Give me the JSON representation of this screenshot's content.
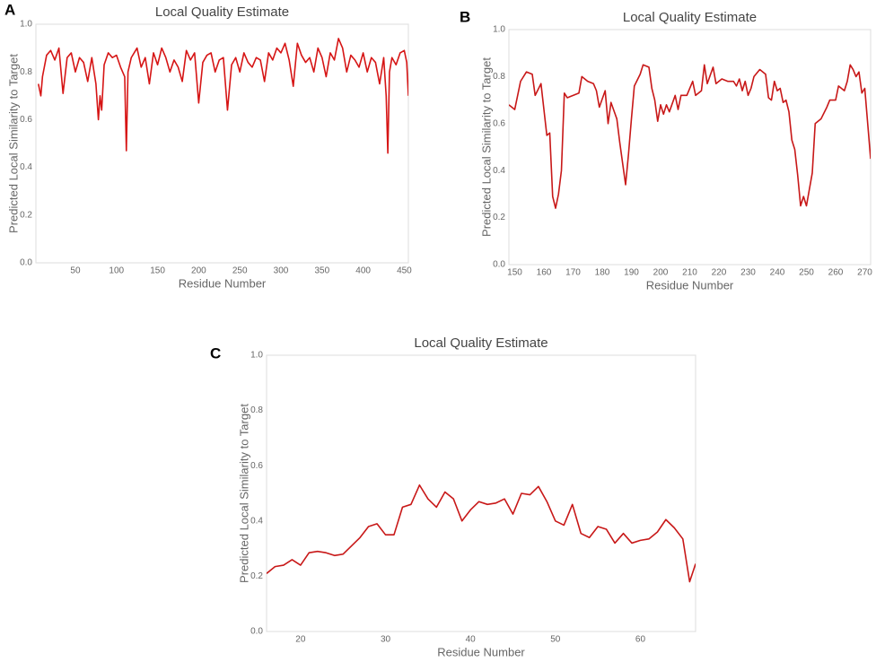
{
  "chart_data": [
    {
      "type": "line",
      "panel": "A",
      "title": "Local Quality Estimate",
      "x_label": "Residue Number",
      "y_label": "Predicted Local Similarity to Target",
      "xlim": [
        2,
        455
      ],
      "ylim": [
        0,
        1
      ],
      "xticks": [
        50,
        100,
        150,
        200,
        250,
        300,
        350,
        400,
        450
      ],
      "yticks": [
        {
          "value": 0,
          "label": "0.0"
        },
        {
          "value": 0.2,
          "label": "0.2"
        },
        {
          "value": 0.4,
          "label": "0.4"
        },
        {
          "value": 0.6,
          "label": "0.6"
        },
        {
          "value": 0.8,
          "label": "0.8"
        },
        {
          "value": 1,
          "label": "1.0"
        }
      ],
      "color": "#d61515",
      "x": [
        5,
        8,
        10,
        15,
        20,
        25,
        30,
        35,
        40,
        45,
        50,
        55,
        60,
        65,
        70,
        75,
        78,
        80,
        82,
        85,
        90,
        95,
        100,
        105,
        110,
        112,
        114,
        118,
        125,
        130,
        135,
        140,
        145,
        150,
        155,
        160,
        165,
        170,
        175,
        180,
        185,
        190,
        195,
        200,
        205,
        210,
        215,
        220,
        225,
        230,
        235,
        240,
        245,
        250,
        255,
        260,
        265,
        270,
        275,
        280,
        285,
        290,
        295,
        300,
        305,
        310,
        315,
        320,
        325,
        330,
        335,
        340,
        345,
        350,
        355,
        360,
        365,
        370,
        375,
        380,
        385,
        390,
        395,
        400,
        405,
        410,
        415,
        420,
        425,
        428,
        430,
        432,
        435,
        440,
        445,
        450,
        453,
        455
      ],
      "values": [
        0.75,
        0.7,
        0.78,
        0.87,
        0.89,
        0.85,
        0.9,
        0.71,
        0.86,
        0.88,
        0.8,
        0.86,
        0.84,
        0.76,
        0.86,
        0.75,
        0.6,
        0.7,
        0.64,
        0.83,
        0.88,
        0.86,
        0.87,
        0.82,
        0.78,
        0.47,
        0.8,
        0.86,
        0.9,
        0.82,
        0.86,
        0.75,
        0.88,
        0.83,
        0.9,
        0.86,
        0.8,
        0.85,
        0.82,
        0.76,
        0.89,
        0.85,
        0.88,
        0.67,
        0.84,
        0.87,
        0.88,
        0.8,
        0.85,
        0.86,
        0.64,
        0.83,
        0.86,
        0.8,
        0.88,
        0.84,
        0.82,
        0.86,
        0.85,
        0.76,
        0.88,
        0.85,
        0.9,
        0.88,
        0.92,
        0.85,
        0.74,
        0.92,
        0.87,
        0.84,
        0.86,
        0.8,
        0.9,
        0.86,
        0.78,
        0.88,
        0.85,
        0.94,
        0.9,
        0.8,
        0.87,
        0.85,
        0.82,
        0.88,
        0.8,
        0.86,
        0.84,
        0.75,
        0.86,
        0.7,
        0.46,
        0.8,
        0.86,
        0.83,
        0.88,
        0.89,
        0.84,
        0.7
      ]
    },
    {
      "type": "line",
      "panel": "B",
      "title": "Local Quality Estimate",
      "x_label": "Residue Number",
      "y_label": "Predicted Local Similarity to Target",
      "xlim": [
        148,
        272
      ],
      "ylim": [
        0,
        1
      ],
      "xticks": [
        150,
        160,
        170,
        180,
        190,
        200,
        210,
        220,
        230,
        240,
        250,
        260,
        270
      ],
      "yticks": [
        {
          "value": 0,
          "label": "0.0"
        },
        {
          "value": 0.2,
          "label": "0.2"
        },
        {
          "value": 0.4,
          "label": "0.4"
        },
        {
          "value": 0.6,
          "label": "0.6"
        },
        {
          "value": 0.8,
          "label": "0.8"
        },
        {
          "value": 1,
          "label": "1.0"
        }
      ],
      "color": "#c81818",
      "x": [
        148,
        150,
        152,
        154,
        156,
        157,
        159,
        160,
        161,
        162,
        163,
        164,
        165,
        166,
        167,
        168,
        170,
        172,
        173,
        175,
        177,
        178,
        179,
        181,
        182,
        183,
        185,
        186,
        187,
        188,
        189,
        190,
        191,
        193,
        194,
        196,
        197,
        198,
        199,
        200,
        201,
        202,
        203,
        205,
        206,
        207,
        209,
        211,
        212,
        214,
        215,
        216,
        218,
        219,
        221,
        223,
        225,
        226,
        227,
        228,
        229,
        230,
        231,
        232,
        234,
        236,
        237,
        238,
        239,
        240,
        241,
        242,
        243,
        244,
        245,
        246,
        247,
        248,
        249,
        250,
        251,
        252,
        253,
        255,
        257,
        258,
        260,
        261,
        263,
        264,
        265,
        266,
        267,
        268,
        269,
        270,
        271,
        272
      ],
      "values": [
        0.68,
        0.66,
        0.78,
        0.82,
        0.81,
        0.72,
        0.77,
        0.66,
        0.55,
        0.56,
        0.29,
        0.24,
        0.3,
        0.4,
        0.73,
        0.71,
        0.72,
        0.73,
        0.8,
        0.78,
        0.77,
        0.74,
        0.67,
        0.74,
        0.6,
        0.69,
        0.62,
        0.52,
        0.43,
        0.34,
        0.47,
        0.62,
        0.76,
        0.81,
        0.85,
        0.84,
        0.75,
        0.7,
        0.61,
        0.68,
        0.64,
        0.68,
        0.65,
        0.72,
        0.66,
        0.72,
        0.72,
        0.78,
        0.72,
        0.74,
        0.85,
        0.77,
        0.84,
        0.77,
        0.79,
        0.78,
        0.78,
        0.76,
        0.79,
        0.74,
        0.78,
        0.72,
        0.75,
        0.8,
        0.83,
        0.81,
        0.71,
        0.7,
        0.78,
        0.74,
        0.75,
        0.69,
        0.7,
        0.65,
        0.53,
        0.49,
        0.38,
        0.25,
        0.29,
        0.25,
        0.32,
        0.39,
        0.6,
        0.62,
        0.67,
        0.7,
        0.7,
        0.76,
        0.74,
        0.78,
        0.85,
        0.83,
        0.8,
        0.82,
        0.73,
        0.75,
        0.6,
        0.45
      ]
    },
    {
      "type": "line",
      "panel": "C",
      "title": "Local Quality Estimate",
      "x_label": "Residue Number",
      "y_label": "Predicted Local Similarity to Target",
      "xlim": [
        16,
        66.5
      ],
      "ylim": [
        0,
        1
      ],
      "xticks": [
        20,
        30,
        40,
        50,
        60
      ],
      "yticks": [
        {
          "value": 0,
          "label": "0.0"
        },
        {
          "value": 0.2,
          "label": "0.2"
        },
        {
          "value": 0.4,
          "label": "0.4"
        },
        {
          "value": 0.6,
          "label": "0.6"
        },
        {
          "value": 0.8,
          "label": "0.8"
        },
        {
          "value": 1,
          "label": "1.0"
        }
      ],
      "color": "#c81818",
      "x": [
        16,
        17,
        18,
        19,
        20,
        21,
        22,
        23,
        24,
        25,
        26,
        27,
        28,
        29,
        30,
        31,
        32,
        33,
        34,
        35,
        36,
        37,
        38,
        39,
        40,
        41,
        42,
        43,
        44,
        45,
        46,
        47,
        48,
        49,
        50,
        51,
        52,
        53,
        54,
        55,
        56,
        57,
        58,
        59,
        60,
        61,
        62,
        63,
        64,
        65,
        65.8,
        66.5
      ],
      "values": [
        0.21,
        0.235,
        0.24,
        0.26,
        0.24,
        0.285,
        0.29,
        0.285,
        0.275,
        0.28,
        0.31,
        0.34,
        0.38,
        0.39,
        0.35,
        0.35,
        0.45,
        0.46,
        0.53,
        0.48,
        0.45,
        0.505,
        0.48,
        0.4,
        0.44,
        0.47,
        0.46,
        0.465,
        0.48,
        0.425,
        0.5,
        0.495,
        0.525,
        0.47,
        0.4,
        0.385,
        0.46,
        0.355,
        0.34,
        0.38,
        0.37,
        0.32,
        0.355,
        0.32,
        0.33,
        0.335,
        0.36,
        0.405,
        0.375,
        0.335,
        0.18,
        0.245
      ]
    }
  ]
}
